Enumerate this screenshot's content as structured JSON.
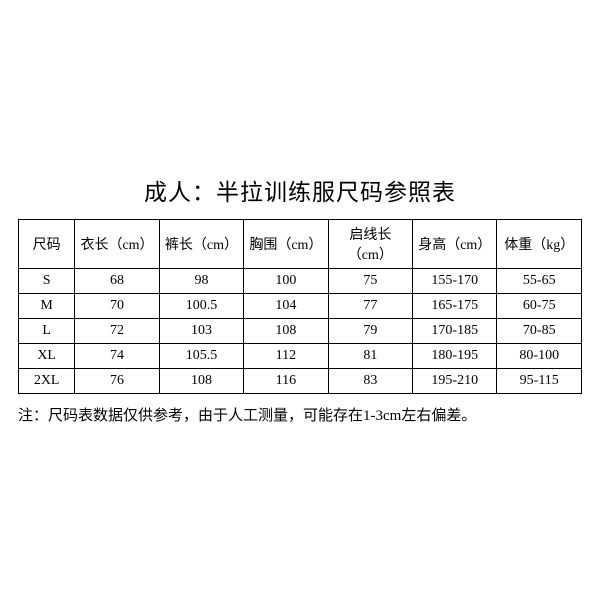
{
  "title": "成人：半拉训练服尺码参照表",
  "table": {
    "columns": [
      "尺码",
      "衣长（cm）",
      "裤长（cm）",
      "胸围（cm）",
      "启线长（cm）",
      "身高（cm）",
      "体重（kg）"
    ],
    "rows": [
      [
        "S",
        "68",
        "98",
        "100",
        "75",
        "155-170",
        "55-65"
      ],
      [
        "M",
        "70",
        "100.5",
        "104",
        "77",
        "165-175",
        "60-75"
      ],
      [
        "L",
        "72",
        "103",
        "108",
        "79",
        "170-185",
        "70-85"
      ],
      [
        "XL",
        "74",
        "105.5",
        "112",
        "81",
        "180-195",
        "80-100"
      ],
      [
        "2XL",
        "76",
        "108",
        "116",
        "83",
        "195-210",
        "95-115"
      ]
    ],
    "column_widths": [
      "10%",
      "15%",
      "15%",
      "15%",
      "15%",
      "15%",
      "15%"
    ],
    "border_color": "#000000",
    "background_color": "#ffffff",
    "font_size": 14
  },
  "note": "注：尺码表数据仅供参考，由于人工测量，可能存在1-3cm左右偏差。"
}
